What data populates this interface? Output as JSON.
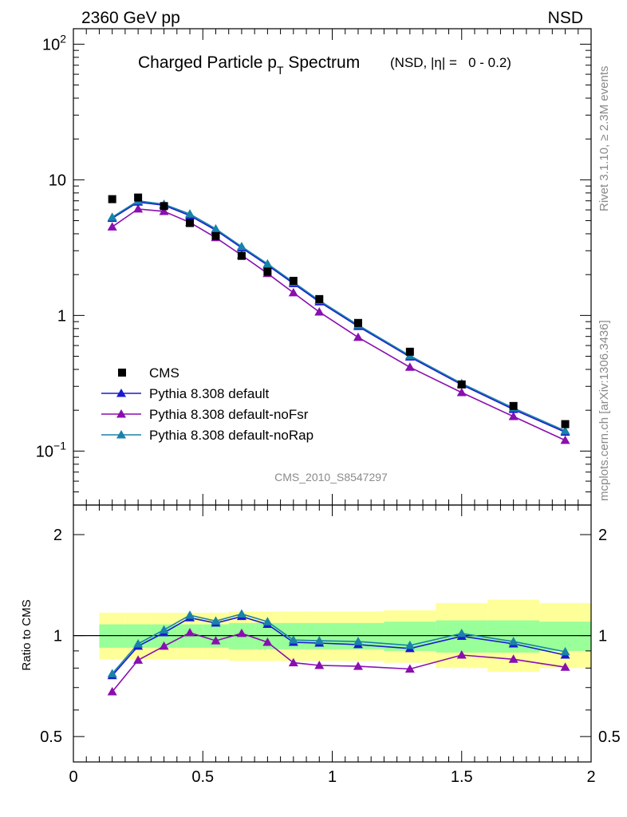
{
  "header": {
    "energy": "2360 GeV pp",
    "process": "NSD",
    "title_main": "Charged Particle p",
    "title_sub": "T",
    "title_tail": " Spectrum",
    "title_cond": "(NSD, |η| =   0 - 0.2)",
    "side_rivet": "Rivet 3.1.10, ≥ 2.3M events",
    "side_mcplots": "mcplots.cern.ch [arXiv:1306.3436]",
    "analysis_id": "CMS_2010_S8547297"
  },
  "colors": {
    "data": "#000000",
    "default": "#1a1ad0",
    "noFsr": "#8a0eb0",
    "noRap": "#1a82a8",
    "band_inner": "#99ff99",
    "band_outer": "#ffff99"
  },
  "chart_data": [
    {
      "type": "scatter",
      "title": "Charged Particle pT Spectrum",
      "xlim": [
        0,
        2
      ],
      "ylim": [
        0.04,
        130
      ],
      "yscale": "log",
      "ytick_labels": [
        {
          "value": 0.1,
          "base": "10",
          "exp": "−1"
        },
        {
          "value": 1,
          "base": "1",
          "exp": ""
        },
        {
          "value": 10,
          "base": "10",
          "exp": ""
        },
        {
          "value": 100,
          "base": "10",
          "exp": "2"
        }
      ],
      "legend": [
        "CMS",
        "Pythia 8.308 default",
        "Pythia 8.308 default-noFsr",
        "Pythia 8.308 default-noRap"
      ],
      "legend_position": "bottom-left",
      "x": [
        0.15,
        0.25,
        0.35,
        0.45,
        0.55,
        0.65,
        0.75,
        0.85,
        0.95,
        1.1,
        1.3,
        1.5,
        1.7,
        1.9
      ],
      "series": [
        {
          "name": "CMS",
          "marker": "square",
          "values": [
            7.2,
            7.4,
            6.4,
            4.8,
            3.85,
            2.75,
            2.1,
            1.8,
            1.32,
            0.88,
            0.54,
            0.31,
            0.215,
            0.158
          ]
        },
        {
          "name": "Pythia 8.308 default",
          "marker": "triangle",
          "values": [
            5.2,
            6.85,
            6.5,
            5.45,
            4.25,
            3.15,
            2.35,
            1.72,
            1.26,
            0.83,
            0.494,
            0.309,
            0.203,
            0.138
          ]
        },
        {
          "name": "Pythia 8.308 default-noFsr",
          "marker": "triangle",
          "values": [
            4.5,
            6.1,
            5.85,
            4.85,
            3.75,
            2.78,
            2.04,
            1.47,
            1.06,
            0.69,
            0.415,
            0.27,
            0.18,
            0.12
          ]
        },
        {
          "name": "Pythia 8.308 default-noRap",
          "marker": "triangle",
          "values": [
            5.3,
            7.0,
            6.6,
            5.6,
            4.35,
            3.22,
            2.4,
            1.76,
            1.29,
            0.85,
            0.505,
            0.315,
            0.208,
            0.141
          ]
        }
      ]
    },
    {
      "type": "line",
      "ylabel": "Ratio to CMS",
      "xlim": [
        0,
        2
      ],
      "ylim": [
        0.42,
        2.45
      ],
      "yscale": "log",
      "yticks": [
        0.5,
        1,
        2
      ],
      "xticks": [
        0,
        0.5,
        1,
        1.5,
        2
      ],
      "x": [
        0.15,
        0.25,
        0.35,
        0.45,
        0.55,
        0.65,
        0.75,
        0.85,
        0.95,
        1.1,
        1.3,
        1.5,
        1.7,
        1.9
      ],
      "bands": {
        "edges": [
          0.1,
          0.2,
          0.3,
          0.4,
          0.5,
          0.6,
          0.7,
          0.8,
          0.9,
          1.0,
          1.2,
          1.4,
          1.6,
          1.8,
          2.0
        ],
        "inner_low": [
          0.92,
          0.92,
          0.92,
          0.92,
          0.92,
          0.91,
          0.91,
          0.91,
          0.91,
          0.91,
          0.9,
          0.89,
          0.89,
          0.9
        ],
        "inner_high": [
          1.08,
          1.08,
          1.08,
          1.08,
          1.08,
          1.09,
          1.09,
          1.09,
          1.09,
          1.09,
          1.1,
          1.11,
          1.11,
          1.1
        ],
        "outer_low": [
          0.85,
          0.85,
          0.85,
          0.85,
          0.85,
          0.84,
          0.84,
          0.84,
          0.84,
          0.84,
          0.83,
          0.8,
          0.78,
          0.8
        ],
        "outer_high": [
          1.17,
          1.17,
          1.17,
          1.17,
          1.17,
          1.18,
          1.18,
          1.18,
          1.18,
          1.18,
          1.19,
          1.25,
          1.28,
          1.25
        ]
      },
      "series": [
        {
          "name": "Pythia 8.308 default",
          "values": [
            0.76,
            0.93,
            1.02,
            1.13,
            1.09,
            1.14,
            1.08,
            0.955,
            0.95,
            0.94,
            0.915,
            0.995,
            0.945,
            0.875
          ]
        },
        {
          "name": "Pythia 8.308 default-noFsr",
          "values": [
            0.68,
            0.845,
            0.93,
            1.02,
            0.965,
            1.015,
            0.955,
            0.83,
            0.815,
            0.81,
            0.795,
            0.875,
            0.85,
            0.805
          ]
        },
        {
          "name": "Pythia 8.308 default-noRap",
          "values": [
            0.77,
            0.945,
            1.04,
            1.15,
            1.105,
            1.16,
            1.1,
            0.97,
            0.965,
            0.96,
            0.935,
            1.015,
            0.96,
            0.895
          ]
        }
      ]
    }
  ]
}
